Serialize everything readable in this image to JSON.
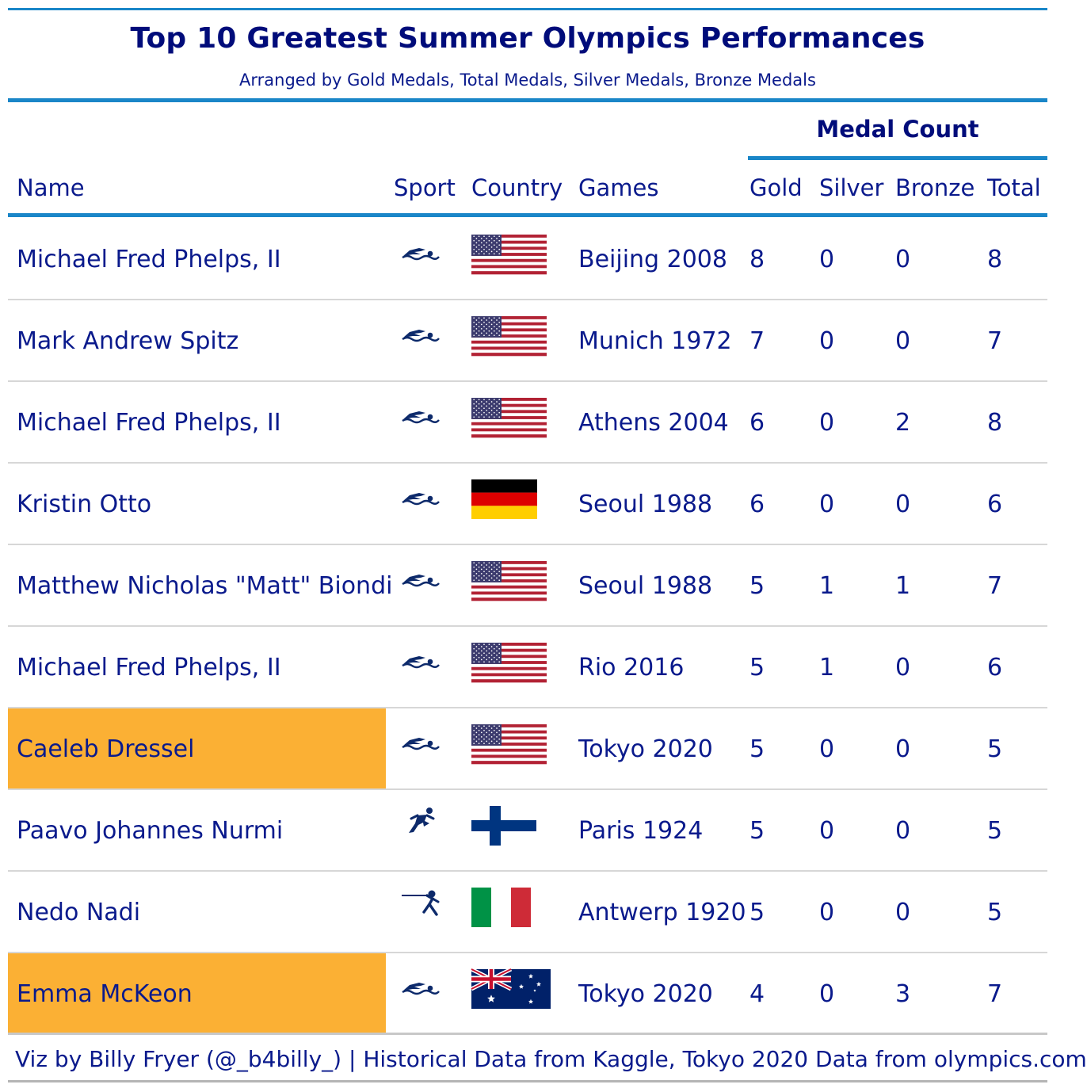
{
  "title": "Top 10 Greatest Summer Olympics Performances",
  "subtitle": "Arranged by Gold Medals, Total Medals, Silver Medals, Bronze Medals",
  "spanner": "Medal Count",
  "columns": {
    "name": "Name",
    "sport": "Sport",
    "country": "Country",
    "games": "Games",
    "gold": "Gold",
    "silver": "Silver",
    "bronze": "Bronze",
    "total": "Total"
  },
  "colors": {
    "accent_rule": "#1a86c8",
    "text": "#0a1a8c",
    "highlight": "#fbb034",
    "separator": "#d7d7d7"
  },
  "rows": [
    {
      "name": "Michael Fred Phelps, II",
      "sport_icon": "swimming-icon",
      "flag": "usa-flag",
      "games": "Beijing 2008",
      "gold": "8",
      "silver": "0",
      "bronze": "0",
      "total": "8",
      "highlight": false
    },
    {
      "name": "Mark Andrew Spitz",
      "sport_icon": "swimming-icon",
      "flag": "usa-flag",
      "games": "Munich 1972",
      "gold": "7",
      "silver": "0",
      "bronze": "0",
      "total": "7",
      "highlight": false
    },
    {
      "name": "Michael Fred Phelps, II",
      "sport_icon": "swimming-icon",
      "flag": "usa-flag",
      "games": "Athens 2004",
      "gold": "6",
      "silver": "0",
      "bronze": "2",
      "total": "8",
      "highlight": false
    },
    {
      "name": "Kristin Otto",
      "sport_icon": "swimming-icon",
      "flag": "germany-flag",
      "games": "Seoul 1988",
      "gold": "6",
      "silver": "0",
      "bronze": "0",
      "total": "6",
      "highlight": false
    },
    {
      "name": "Matthew Nicholas \"Matt\" Biondi",
      "sport_icon": "swimming-icon",
      "flag": "usa-flag",
      "games": "Seoul 1988",
      "gold": "5",
      "silver": "1",
      "bronze": "1",
      "total": "7",
      "highlight": false
    },
    {
      "name": "Michael Fred Phelps, II",
      "sport_icon": "swimming-icon",
      "flag": "usa-flag",
      "games": "Rio 2016",
      "gold": "5",
      "silver": "1",
      "bronze": "0",
      "total": "6",
      "highlight": false
    },
    {
      "name": "Caeleb Dressel",
      "sport_icon": "swimming-icon",
      "flag": "usa-flag",
      "games": "Tokyo 2020",
      "gold": "5",
      "silver": "0",
      "bronze": "0",
      "total": "5",
      "highlight": true
    },
    {
      "name": "Paavo Johannes Nurmi",
      "sport_icon": "athletics-icon",
      "flag": "finland-flag",
      "games": "Paris 1924",
      "gold": "5",
      "silver": "0",
      "bronze": "0",
      "total": "5",
      "highlight": false
    },
    {
      "name": "Nedo Nadi",
      "sport_icon": "fencing-icon",
      "flag": "italy-flag",
      "games": "Antwerp 1920",
      "gold": "5",
      "silver": "0",
      "bronze": "0",
      "total": "5",
      "highlight": false
    },
    {
      "name": "Emma McKeon",
      "sport_icon": "swimming-icon",
      "flag": "australia-flag",
      "games": "Tokyo 2020",
      "gold": "4",
      "silver": "0",
      "bronze": "3",
      "total": "7",
      "highlight": true
    }
  ],
  "footer": "Viz by Billy Fryer (@_b4billy_) | Historical Data from Kaggle, Tokyo 2020 Data from olympics.com"
}
